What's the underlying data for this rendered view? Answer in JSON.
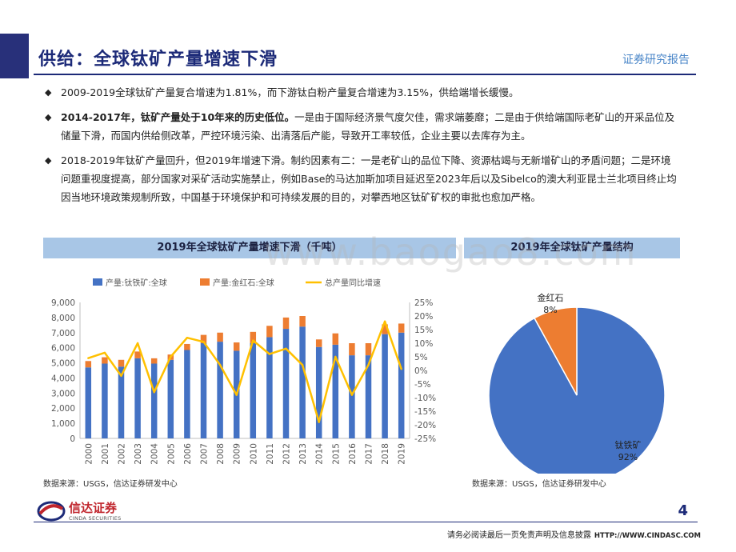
{
  "header": {
    "title": "供给：全球钛矿产量增速下滑",
    "tag": "证券研究报告"
  },
  "bullets": [
    {
      "bold": "",
      "text": "2009-2019全球钛矿产量复合增速为1.81%，而下游钛白粉产量复合增速为3.15%，供给端增长缓慢。"
    },
    {
      "bold": "2014-2017年，钛矿产量处于10年来的历史低位。",
      "text": "一是由于国际经济景气度欠佳，需求端萎靡；二是由于供给端国际老矿山的开采品位及储量下滑，而国内供给侧改革，严控环境污染、出清落后产能，导致开工率较低，企业主要以去库存为主。"
    },
    {
      "bold": "",
      "text": "2018-2019年钛矿产量回升，但2019年增速下滑。制约因素有二：一是老矿山的品位下降、资源枯竭与无新增矿山的矛盾问题；二是环境问题重视度提高，部分国家对采矿活动实施禁止，例如Base的马达加斯加项目延迟至2023年后以及Sibelco的澳大利亚昆士兰北项目终止均因当地环境政策规制所致，中国基于环境保护和可持续发展的目的，对攀西地区钛矿矿权的审批也愈加严格。"
    }
  ],
  "left_panel": {
    "heading": "2019年全球钛矿产量增速下滑（千吨）",
    "source": "数据来源：USGS，信达证券研发中心"
  },
  "right_panel": {
    "heading": "2019年全球钛矿产量结构",
    "source": "数据来源：USGS，信达证券研发中心"
  },
  "watermark": "www.baogao8.com",
  "chart_data": [
    {
      "type": "bar",
      "stacked": true,
      "title": "2019年全球钛矿产量增速下滑（千吨）",
      "categories": [
        "2000",
        "2001",
        "2002",
        "2003",
        "2004",
        "2005",
        "2006",
        "2007",
        "2008",
        "2009",
        "2010",
        "2011",
        "2012",
        "2013",
        "2014",
        "2015",
        "2016",
        "2017",
        "2018",
        "2019"
      ],
      "series": [
        {
          "name": "产量:钛铁矿:全球",
          "color": "#4472c4",
          "axis": "left",
          "values": [
            4700,
            4950,
            4750,
            5300,
            4950,
            5200,
            5850,
            6300,
            6400,
            5800,
            6300,
            6700,
            7250,
            7400,
            6050,
            6200,
            5500,
            5500,
            6900,
            7000
          ]
        },
        {
          "name": "产量:金红石:全球",
          "color": "#ed7d31",
          "axis": "left",
          "values": [
            420,
            420,
            450,
            450,
            350,
            350,
            400,
            550,
            600,
            550,
            750,
            750,
            750,
            700,
            500,
            750,
            800,
            800,
            650,
            600
          ]
        },
        {
          "name": "总产量同比增速",
          "color": "#ffc000",
          "type": "line",
          "axis": "right",
          "unit": "%",
          "values": [
            4.5,
            6.5,
            -2.0,
            10.0,
            -8.0,
            5.0,
            12.0,
            10.5,
            2.0,
            -9.0,
            11.0,
            6.0,
            8.0,
            2.0,
            -19.0,
            5.0,
            -9.0,
            2.0,
            18.0,
            0.5
          ]
        }
      ],
      "y_left": {
        "min": 0,
        "max": 9000,
        "ticks": [
          "0",
          "1,000",
          "2,000",
          "3,000",
          "4,000",
          "5,000",
          "6,000",
          "7,000",
          "8,000",
          "9,000"
        ]
      },
      "y_right": {
        "min": -25,
        "max": 25,
        "ticks": [
          "-25%",
          "-20%",
          "-15%",
          "-10%",
          "-5%",
          "0%",
          "5%",
          "10%",
          "15%",
          "20%",
          "25%"
        ]
      },
      "grid": false,
      "legend": "top"
    },
    {
      "type": "pie",
      "title": "2019年全球钛矿产量结构",
      "slices": [
        {
          "label": "钛铁矿",
          "value": 92,
          "display": "92%",
          "color": "#4472c4"
        },
        {
          "label": "金红石",
          "value": 8,
          "display": "8%",
          "color": "#ed7d31"
        }
      ]
    }
  ],
  "footer": {
    "logo_cn": "信达证券",
    "logo_en": "CINDA SECURITIES",
    "page_number": "4",
    "disclaimer": "请务必阅读最后一页免责声明及信息披露",
    "url": "HTTP://WWW.CINDASC.COM"
  }
}
